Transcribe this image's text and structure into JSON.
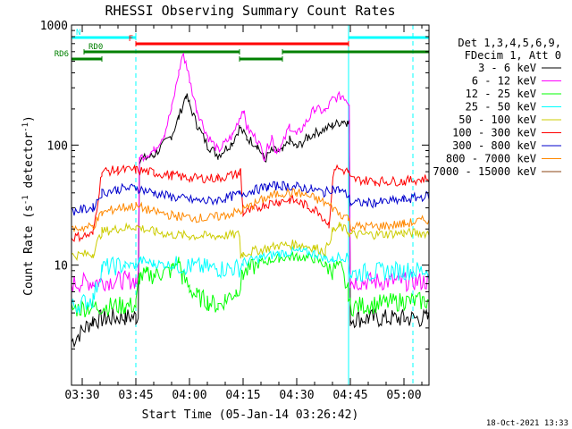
{
  "chart_data": {
    "type": "line",
    "title": "RHESSI Observing Summary Count Rates",
    "xlabel": "Start Time (05-Jan-14 03:26:42)",
    "ylabel": "Count Rate (s^-1 detector^-1)",
    "ylabel_parts": [
      "Count Rate (s",
      "-1",
      " detector",
      "-1",
      ")"
    ],
    "y_scale": "log",
    "ylim": [
      1,
      1000
    ],
    "y_ticks": [
      {
        "v": 10,
        "label": "10"
      },
      {
        "v": 100,
        "label": "100"
      },
      {
        "v": 1000,
        "label": "1000"
      }
    ],
    "x_range_min": [
      207,
      307
    ],
    "x_ticks": [
      {
        "t": 210,
        "label": "03:30"
      },
      {
        "t": 225,
        "label": "03:45"
      },
      {
        "t": 240,
        "label": "04:00"
      },
      {
        "t": 255,
        "label": "04:15"
      },
      {
        "t": 270,
        "label": "04:30"
      },
      {
        "t": 285,
        "label": "04:45"
      },
      {
        "t": 300,
        "label": "05:00"
      }
    ],
    "footer": "18-Oct-2021 13:33",
    "legend_header": [
      "Det 1,3,4,5,6,9,",
      "FDecim 1, Att 0"
    ],
    "night_bars": [
      {
        "label": "N",
        "color": "#00ffff",
        "start": 207.0,
        "end": 225.0
      },
      {
        "label": "",
        "color": "#00ffff",
        "start": 284.5,
        "end": 307.0
      }
    ],
    "saa_flare_bars": [
      {
        "label": "F",
        "color": "#ff0000",
        "start": 225.0,
        "end": 284.5
      }
    ],
    "rd_bars": [
      {
        "label": "RD0",
        "color": "#008000",
        "start": 210.5,
        "end": 254.0
      },
      {
        "label": "RD6",
        "color": "#008000",
        "start": 207.0,
        "end": 215.5
      },
      {
        "label": "",
        "color": "#008000",
        "start": 254.0,
        "end": 266.0
      },
      {
        "label": "",
        "color": "#008000",
        "start": 266.0,
        "end": 307.0
      }
    ],
    "vertical_lines": [
      {
        "t": 207.0,
        "color": "#00ffff",
        "style": "solid"
      },
      {
        "t": 225.0,
        "color": "#00ffff",
        "style": "dashed"
      },
      {
        "t": 284.5,
        "color": "#00ffff",
        "style": "solid"
      },
      {
        "t": 302.5,
        "color": "#00ffff",
        "style": "dashed"
      }
    ],
    "series": [
      {
        "name": "3 - 6 keV",
        "color": "#000000",
        "x": [
          207,
          213,
          217,
          222,
          225,
          226,
          230,
          235,
          237,
          239,
          240,
          242,
          245,
          248,
          252,
          254,
          256,
          259,
          261,
          263,
          266,
          268,
          270,
          273,
          275,
          280,
          283,
          284,
          284.4,
          285,
          290,
          300,
          307
        ],
        "y": [
          2.3,
          3.5,
          3.6,
          3.7,
          3.7,
          75,
          82,
          120,
          170,
          260,
          220,
          150,
          100,
          82,
          105,
          140,
          115,
          100,
          75,
          90,
          88,
          110,
          95,
          115,
          125,
          145,
          160,
          155,
          150,
          3.6,
          3.6,
          3.6,
          3.6
        ]
      },
      {
        "name": "6 - 12 keV",
        "color": "#ff00ff",
        "x": [
          207,
          213,
          222,
          225,
          226,
          230,
          233,
          235,
          237,
          238,
          239,
          240,
          242,
          245,
          248,
          252,
          254,
          255,
          256,
          259,
          261,
          263,
          264,
          266,
          268,
          270,
          273,
          275,
          278,
          280,
          283,
          284.4,
          285,
          300,
          307
        ],
        "y": [
          7,
          7.3,
          7.5,
          7.5,
          78,
          90,
          125,
          200,
          400,
          560,
          500,
          350,
          200,
          120,
          90,
          120,
          170,
          200,
          140,
          110,
          80,
          120,
          90,
          100,
          145,
          120,
          160,
          200,
          190,
          240,
          260,
          230,
          7.3,
          7.3,
          7.3
        ]
      },
      {
        "name": "12 - 25 keV",
        "color": "#00ff00",
        "x": [
          207,
          213,
          222,
          225,
          226,
          228,
          230,
          232,
          235,
          237,
          238,
          240,
          242,
          245,
          248,
          250,
          253,
          254.3,
          255,
          260,
          265,
          270,
          275,
          278,
          280,
          282,
          284.4,
          285,
          300,
          307
        ],
        "y": [
          4.3,
          4.5,
          4.6,
          4.6,
          8,
          8.2,
          8.3,
          8.5,
          9,
          11,
          8,
          6.5,
          5.5,
          5,
          4.6,
          5.2,
          6,
          7,
          8.5,
          10.5,
          11.5,
          11.8,
          11.3,
          10,
          9,
          10,
          6,
          4.5,
          5,
          5
        ]
      },
      {
        "name": "25 - 50 keV",
        "color": "#00ffff",
        "x": [
          207,
          213,
          215.5,
          222,
          225,
          226,
          230,
          240,
          248,
          254.3,
          255,
          260,
          265,
          270,
          275,
          278,
          280,
          282,
          284.4,
          285,
          292,
          300,
          307
        ],
        "y": [
          4.5,
          5.2,
          9.5,
          10,
          10,
          11,
          10.3,
          9.8,
          9.3,
          9.5,
          10.5,
          11.5,
          12.5,
          13,
          12.5,
          11.5,
          11,
          12,
          11.5,
          8.5,
          8.8,
          9,
          9
        ]
      },
      {
        "name": "50 - 100 keV",
        "color": "#cccc00",
        "x": [
          207,
          213,
          215.5,
          220,
          225,
          230,
          235,
          240,
          248,
          254,
          254.3,
          255,
          260,
          265,
          270,
          275,
          278,
          280,
          282,
          284.4,
          285,
          292,
          300,
          307
        ],
        "y": [
          12,
          12.5,
          19,
          20,
          21,
          19,
          18,
          17.5,
          17.5,
          18,
          12,
          12.5,
          13.5,
          14.5,
          15,
          14,
          13,
          19,
          21,
          19,
          18,
          18,
          18.5,
          18.5
        ]
      },
      {
        "name": "100 - 300 keV",
        "color": "#ff0000",
        "x": [
          207,
          213,
          215.5,
          220,
          225,
          230,
          235,
          240,
          248,
          254,
          254.3,
          255,
          258,
          261,
          265,
          268,
          270,
          273,
          276,
          279,
          280.5,
          284.4,
          285,
          292,
          300,
          307
        ],
        "y": [
          17,
          18,
          60,
          62,
          62,
          59,
          56,
          53,
          53,
          58,
          62,
          27,
          29,
          32,
          34,
          35,
          34,
          31,
          28,
          22,
          65,
          60,
          52,
          50,
          50,
          53
        ]
      },
      {
        "name": "300 - 800 keV",
        "color": "#0000cc",
        "x": [
          207,
          213,
          215.5,
          220,
          225,
          230,
          235,
          240,
          245,
          250,
          254,
          258,
          262,
          266,
          270,
          274,
          278,
          280,
          282,
          284.4,
          285,
          292,
          300,
          307
        ],
        "y": [
          28,
          30,
          40,
          43,
          44,
          40,
          37,
          35,
          34,
          36,
          39,
          42,
          45,
          46,
          45,
          43,
          40,
          44,
          42,
          38,
          33,
          33,
          35,
          38
        ]
      },
      {
        "name": "800 - 7000 keV",
        "color": "#ff8800",
        "x": [
          207,
          213,
          215.5,
          220,
          225,
          230,
          235,
          240,
          245,
          250,
          254,
          258,
          262,
          266,
          270,
          274,
          278,
          280,
          282,
          284.4,
          285,
          292,
          300,
          307
        ],
        "y": [
          20,
          21,
          27,
          30,
          31,
          28,
          26,
          25,
          24.5,
          26,
          28,
          32,
          37,
          40,
          40,
          37,
          33,
          30,
          27,
          25,
          21,
          21,
          22,
          24
        ]
      },
      {
        "name": "7000 - 15000 keV",
        "color": "#8b4513",
        "x": [],
        "y": []
      }
    ]
  }
}
